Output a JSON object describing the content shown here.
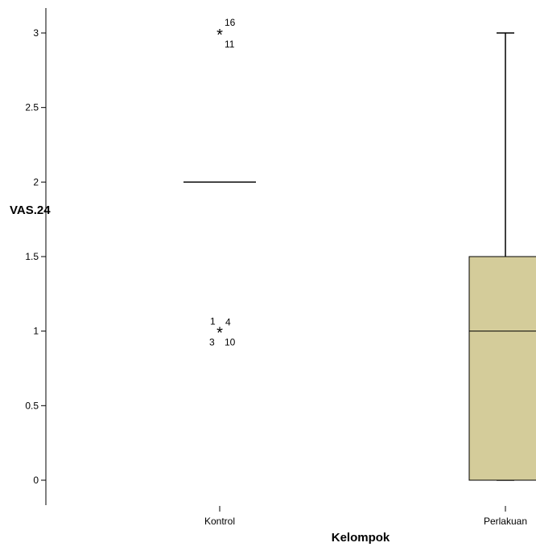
{
  "chart_data": {
    "type": "boxplot",
    "xlabel": "Kelompok",
    "ylabel": "VAS.24",
    "ylim": [
      -0.15,
      3.15
    ],
    "yticks": [
      0,
      0.5,
      1,
      1.5,
      2,
      2.5,
      3
    ],
    "ytick_labels": [
      "0",
      "0.5",
      "1",
      "1.5",
      "2",
      "2.5",
      "3"
    ],
    "categories": [
      "Kontrol",
      "Perlakuan"
    ],
    "box_color": "#d4cc9a",
    "groups": [
      {
        "category": "Kontrol",
        "min": 2,
        "q1": 2,
        "median": 2,
        "q3": 2,
        "max": 2,
        "outliers": [
          {
            "value": 3,
            "labels": [
              "16",
              "11"
            ]
          },
          {
            "value": 1,
            "labels": [
              "1",
              "4",
              "3",
              "10"
            ]
          }
        ]
      },
      {
        "category": "Perlakuan",
        "min": 0,
        "q1": 0,
        "median": 1,
        "q3": 1.5,
        "max": 3,
        "outliers": []
      }
    ]
  }
}
